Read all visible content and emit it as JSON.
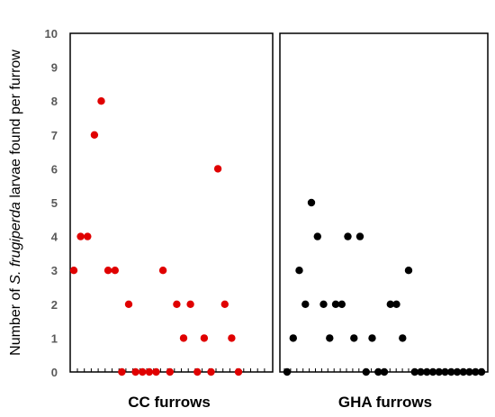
{
  "chart_data": {
    "type": "scatter",
    "ylabel_parts": [
      "Number of ",
      "S. frugiperda",
      " larvae found per furrow"
    ],
    "ylim": [
      0,
      10
    ],
    "yticks": [
      "0",
      "1",
      "2",
      "3",
      "4",
      "5",
      "6",
      "7",
      "8",
      "9",
      "10"
    ],
    "grid": false,
    "panels": [
      {
        "label": "CC furrows",
        "color": "#e00000",
        "values": [
          3,
          4,
          4,
          7,
          8,
          3,
          3,
          0,
          2,
          0,
          0,
          0,
          0,
          3,
          0,
          2,
          1,
          2,
          0,
          1,
          0,
          6,
          2,
          1,
          0
        ]
      },
      {
        "label": "GHA furrows",
        "color": "#000000",
        "values": [
          0,
          1,
          3,
          2,
          5,
          4,
          2,
          1,
          2,
          2,
          4,
          1,
          4,
          0,
          1,
          0,
          0,
          2,
          2,
          1,
          3,
          0,
          0,
          0,
          0,
          0,
          0,
          0,
          0,
          0,
          0,
          0,
          0
        ]
      }
    ]
  }
}
